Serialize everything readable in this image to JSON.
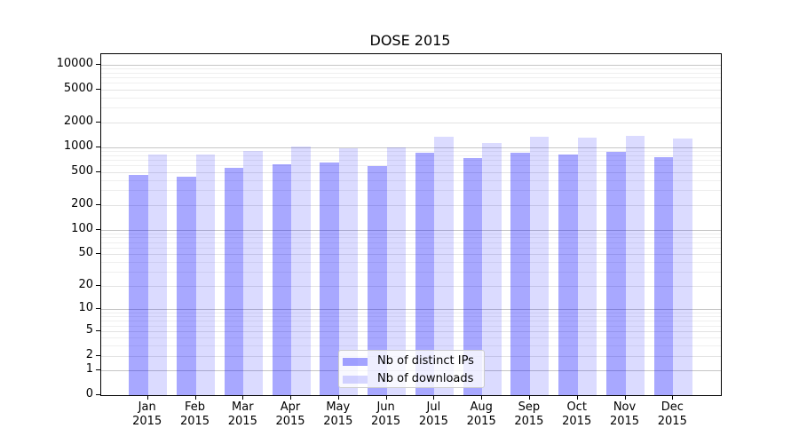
{
  "title": "DOSE 2015",
  "chart_data": {
    "type": "bar",
    "title": "DOSE 2015",
    "categories": [
      "Jan",
      "Feb",
      "Mar",
      "Apr",
      "May",
      "Jun",
      "Jul",
      "Aug",
      "Sep",
      "Oct",
      "Nov",
      "Dec"
    ],
    "year": "2015",
    "series": [
      {
        "name": "Nb of distinct IPs",
        "color": "#0000ff",
        "alpha": 0.34,
        "values": [
          460,
          440,
          560,
          615,
          645,
          590,
          850,
          735,
          850,
          815,
          875,
          760
        ]
      },
      {
        "name": "Nb of downloads",
        "color": "#0000ff",
        "alpha": 0.14,
        "values": [
          810,
          820,
          900,
          1025,
          970,
          1000,
          1325,
          1120,
          1345,
          1300,
          1360,
          1280
        ]
      }
    ],
    "y_axis": {
      "scale": "log1p",
      "ticks": [
        0,
        1,
        2,
        5,
        10,
        20,
        50,
        100,
        200,
        500,
        1000,
        2000,
        5000,
        10000
      ],
      "max": 13300
    },
    "xlabel": "",
    "ylabel": "",
    "grid": true,
    "legend_position": "lower center",
    "colors": {
      "grid_major": "#c6c6c6",
      "grid_mid": "#e3e3e3",
      "grid_minor": "#efefef",
      "axis": "#000000",
      "background": "#ffffff"
    }
  }
}
